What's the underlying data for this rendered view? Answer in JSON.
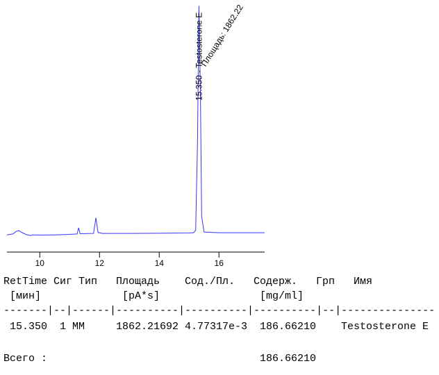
{
  "chart_data": {
    "type": "line",
    "x": [
      8.9,
      9.1,
      9.2,
      9.3,
      9.4,
      9.55,
      9.7,
      9.75,
      10.0,
      10.5,
      11.0,
      11.25,
      11.3,
      11.35,
      11.8,
      11.88,
      11.95,
      12.1,
      13.0,
      14.0,
      15.0,
      15.15,
      15.22,
      15.28,
      15.33,
      15.38,
      15.42,
      15.5,
      16.0,
      17.0,
      17.53
    ],
    "series": [
      {
        "color": "#3333ff",
        "values": [
          2.0,
          2.4,
          3.4,
          3.8,
          3.0,
          2.1,
          1.7,
          2.0,
          1.9,
          2.0,
          2.2,
          2.4,
          5.0,
          2.5,
          2.6,
          9.2,
          3.0,
          2.6,
          2.6,
          2.7,
          2.8,
          2.9,
          4.0,
          40,
          99,
          60,
          10,
          3.2,
          2.9,
          2.9,
          2.9
        ]
      }
    ],
    "xlim": [
      8.9,
      17.53
    ],
    "xticks": [
      10,
      12,
      14,
      16
    ],
    "ylim": [
      0,
      100
    ],
    "annotations": {
      "peak_label": "15.350 - Testosterone E",
      "area_label": "Площадь: 1862.22",
      "peak_x": 15.35
    }
  },
  "report": {
    "header": [
      "RetTime",
      "Сиг",
      "Тип",
      "Площадь",
      "Сод./Пл.",
      "Содерж.",
      "Грп",
      "Имя"
    ],
    "units": [
      "[мин]",
      "[pA*s]",
      "[mg/ml]"
    ],
    "separator": "-------|--|------|----------|----------|----------|--|---------------",
    "rows": [
      [
        "15.350",
        "1",
        "MM",
        "1862.21692",
        "4.77317e-3",
        "186.66210",
        "Testosterone E"
      ]
    ],
    "total_label": "Всего :",
    "total": "186.66210"
  }
}
